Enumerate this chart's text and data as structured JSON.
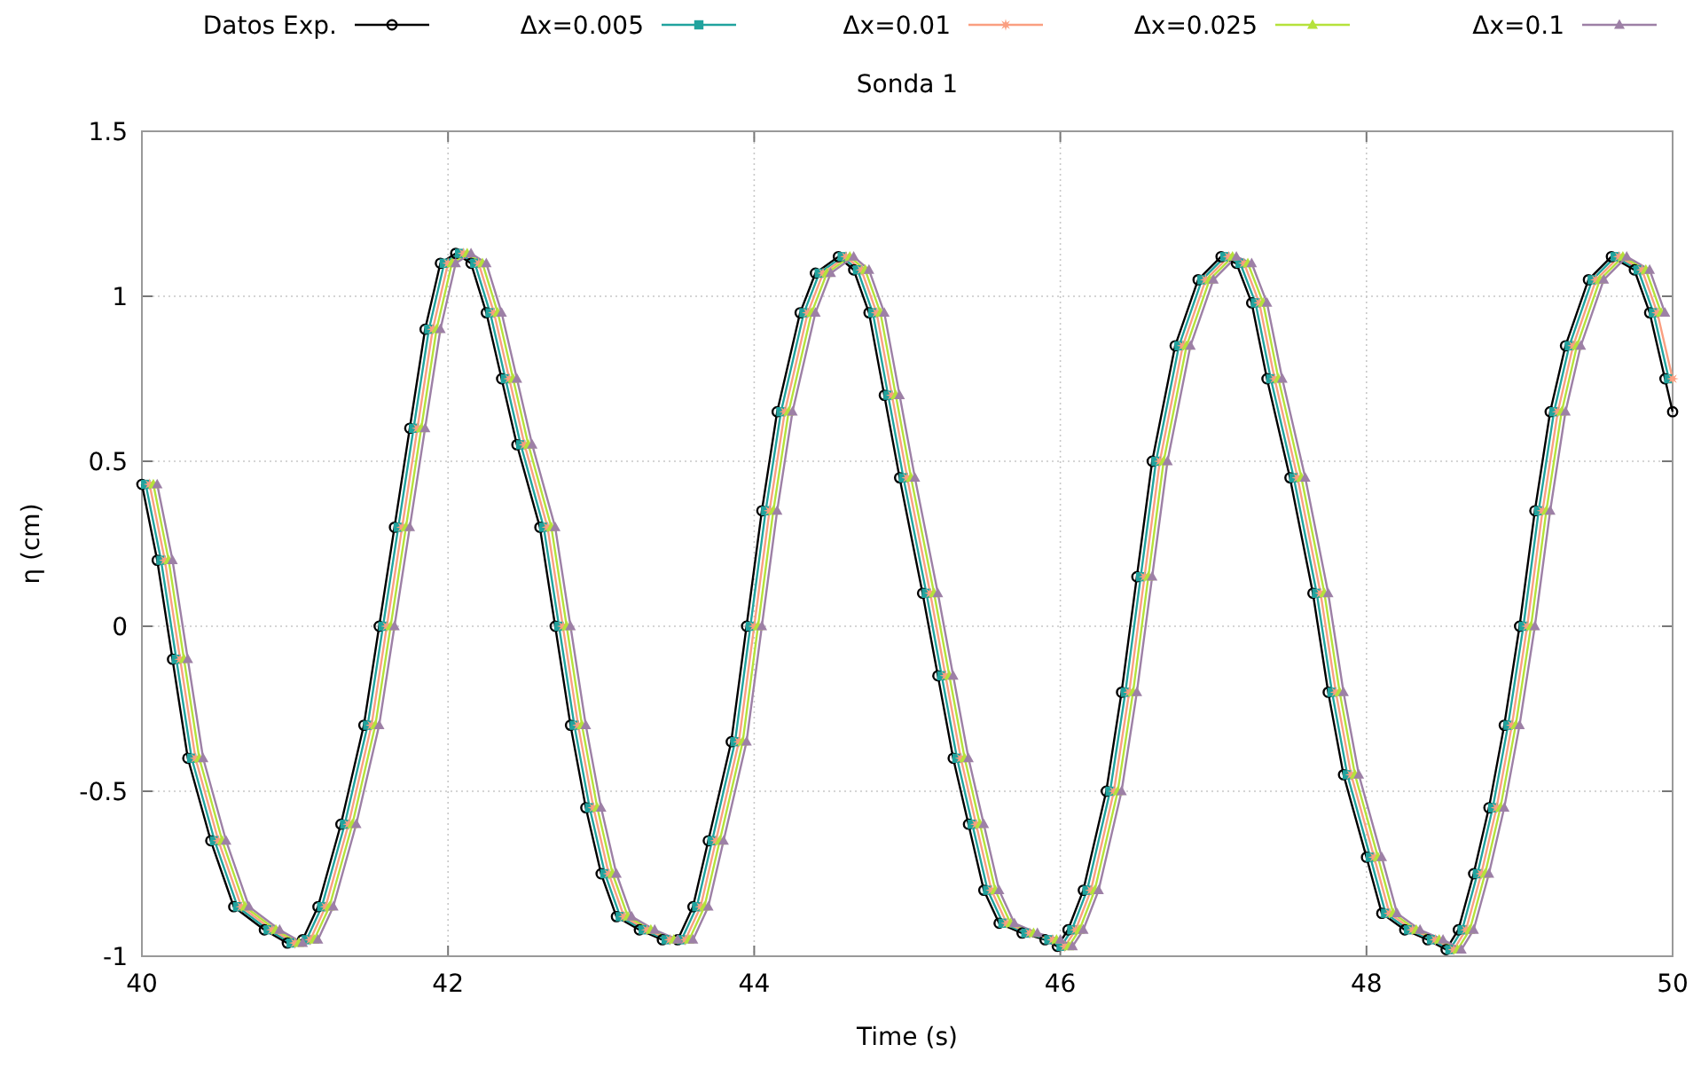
{
  "chart_data": {
    "type": "line",
    "title": "Sonda 1",
    "xlabel": "Time (s)",
    "ylabel": "η (cm)",
    "xlim": [
      40,
      50
    ],
    "ylim": [
      -1,
      1.5
    ],
    "xticks": [
      40,
      42,
      44,
      46,
      48,
      50
    ],
    "yticks": [
      -1,
      -0.5,
      0,
      0.5,
      1,
      1.5
    ],
    "grid": true,
    "legend": "top",
    "x": [
      40,
      40.1,
      40.2,
      40.3,
      40.45,
      40.6,
      40.8,
      40.95,
      41.05,
      41.15,
      41.3,
      41.45,
      41.55,
      41.65,
      41.75,
      41.85,
      41.95,
      42.05,
      42.15,
      42.25,
      42.35,
      42.45,
      42.6,
      42.7,
      42.8,
      42.9,
      43,
      43.1,
      43.25,
      43.4,
      43.5,
      43.6,
      43.7,
      43.85,
      43.95,
      44.05,
      44.15,
      44.3,
      44.4,
      44.55,
      44.65,
      44.75,
      44.85,
      44.95,
      45.1,
      45.2,
      45.3,
      45.4,
      45.5,
      45.6,
      45.75,
      45.9,
      45.98,
      46.05,
      46.15,
      46.3,
      46.4,
      46.5,
      46.6,
      46.75,
      46.9,
      47.05,
      47.15,
      47.25,
      47.35,
      47.5,
      47.65,
      47.75,
      47.85,
      48,
      48.1,
      48.25,
      48.4,
      48.52,
      48.6,
      48.7,
      48.8,
      48.9,
      49,
      49.1,
      49.2,
      49.3,
      49.45,
      49.6,
      49.75,
      49.85,
      49.95,
      50
    ],
    "series": [
      {
        "name": "Datos Exp.",
        "color": "#000000",
        "marker": "circle",
        "values": [
          0.43,
          0.2,
          -0.1,
          -0.4,
          -0.65,
          -0.85,
          -0.92,
          -0.96,
          -0.95,
          -0.85,
          -0.6,
          -0.3,
          0,
          0.3,
          0.6,
          0.9,
          1.1,
          1.13,
          1.1,
          0.95,
          0.75,
          0.55,
          0.3,
          0,
          -0.3,
          -0.55,
          -0.75,
          -0.88,
          -0.92,
          -0.95,
          -0.95,
          -0.85,
          -0.65,
          -0.35,
          0,
          0.35,
          0.65,
          0.95,
          1.07,
          1.12,
          1.08,
          0.95,
          0.7,
          0.45,
          0.1,
          -0.15,
          -0.4,
          -0.6,
          -0.8,
          -0.9,
          -0.93,
          -0.95,
          -0.97,
          -0.92,
          -0.8,
          -0.5,
          -0.2,
          0.15,
          0.5,
          0.85,
          1.05,
          1.12,
          1.1,
          0.98,
          0.75,
          0.45,
          0.1,
          -0.2,
          -0.45,
          -0.7,
          -0.87,
          -0.92,
          -0.95,
          -0.98,
          -0.92,
          -0.75,
          -0.55,
          -0.3,
          0,
          0.35,
          0.65,
          0.85,
          1.05,
          1.12,
          1.08,
          0.95,
          0.75,
          0.65
        ]
      },
      {
        "name": "Δx=0.005",
        "color": "#20a39e",
        "marker": "square",
        "x": [
          40.025,
          40.125,
          40.225,
          40.325,
          40.475,
          40.625,
          40.825,
          40.975,
          41.075,
          41.175,
          41.325,
          41.475,
          41.575,
          41.675,
          41.775,
          41.875,
          41.975,
          42.075,
          42.175,
          42.275,
          42.375,
          42.475,
          42.625,
          42.725,
          42.825,
          42.925,
          43.025,
          43.125,
          43.275,
          43.425,
          43.525,
          43.625,
          43.725,
          43.875,
          43.975,
          44.075,
          44.175,
          44.325,
          44.425,
          44.575,
          44.675,
          44.775,
          44.875,
          44.975,
          45.125,
          45.225,
          45.325,
          45.425,
          45.525,
          45.625,
          45.775,
          45.925,
          46.005,
          46.075,
          46.175,
          46.325,
          46.425,
          46.525,
          46.625,
          46.775,
          46.925,
          47.075,
          47.175,
          47.275,
          47.375,
          47.525,
          47.675,
          47.775,
          47.875,
          48.025,
          48.125,
          48.275,
          48.425,
          48.545,
          48.625,
          48.725,
          48.825,
          48.925,
          49.025,
          49.125,
          49.225,
          49.325,
          49.475,
          49.625,
          49.775,
          49.875,
          49.975
        ],
        "values": [
          0.43,
          0.2,
          -0.1,
          -0.4,
          -0.65,
          -0.85,
          -0.92,
          -0.96,
          -0.95,
          -0.85,
          -0.6,
          -0.3,
          0,
          0.3,
          0.6,
          0.9,
          1.1,
          1.13,
          1.1,
          0.95,
          0.75,
          0.55,
          0.3,
          0,
          -0.3,
          -0.55,
          -0.75,
          -0.88,
          -0.92,
          -0.95,
          -0.95,
          -0.85,
          -0.65,
          -0.35,
          0,
          0.35,
          0.65,
          0.95,
          1.07,
          1.12,
          1.08,
          0.95,
          0.7,
          0.45,
          0.1,
          -0.15,
          -0.4,
          -0.6,
          -0.8,
          -0.9,
          -0.93,
          -0.95,
          -0.97,
          -0.92,
          -0.8,
          -0.5,
          -0.2,
          0.15,
          0.5,
          0.85,
          1.05,
          1.12,
          1.1,
          0.98,
          0.75,
          0.45,
          0.1,
          -0.2,
          -0.45,
          -0.7,
          -0.87,
          -0.92,
          -0.95,
          -0.98,
          -0.92,
          -0.75,
          -0.55,
          -0.3,
          0,
          0.35,
          0.65,
          0.85,
          1.05,
          1.12,
          1.08,
          0.95,
          0.75
        ]
      },
      {
        "name": "Δx=0.01",
        "color": "#fa9f81",
        "marker": "star",
        "x": [
          40.05,
          40.15,
          40.25,
          40.35,
          40.5,
          40.65,
          40.85,
          41,
          41.1,
          41.2,
          41.35,
          41.5,
          41.6,
          41.7,
          41.8,
          41.9,
          42,
          42.1,
          42.2,
          42.3,
          42.4,
          42.5,
          42.65,
          42.75,
          42.85,
          42.95,
          43.05,
          43.15,
          43.3,
          43.45,
          43.55,
          43.65,
          43.75,
          43.9,
          44,
          44.1,
          44.2,
          44.35,
          44.45,
          44.6,
          44.7,
          44.8,
          44.9,
          45,
          45.15,
          45.25,
          45.35,
          45.45,
          45.55,
          45.65,
          45.8,
          45.95,
          46.03,
          46.1,
          46.2,
          46.35,
          46.45,
          46.55,
          46.65,
          46.8,
          46.95,
          47.1,
          47.2,
          47.3,
          47.4,
          47.55,
          47.7,
          47.8,
          47.9,
          48.05,
          48.15,
          48.3,
          48.45,
          48.57,
          48.65,
          48.75,
          48.85,
          48.95,
          49.05,
          49.15,
          49.25,
          49.35,
          49.5,
          49.65,
          49.8,
          49.9,
          50
        ],
        "values": [
          0.43,
          0.2,
          -0.1,
          -0.4,
          -0.65,
          -0.85,
          -0.92,
          -0.96,
          -0.95,
          -0.85,
          -0.6,
          -0.3,
          0,
          0.3,
          0.6,
          0.9,
          1.1,
          1.13,
          1.1,
          0.95,
          0.75,
          0.55,
          0.3,
          0,
          -0.3,
          -0.55,
          -0.75,
          -0.88,
          -0.92,
          -0.95,
          -0.95,
          -0.85,
          -0.65,
          -0.35,
          0,
          0.35,
          0.65,
          0.95,
          1.07,
          1.12,
          1.08,
          0.95,
          0.7,
          0.45,
          0.1,
          -0.15,
          -0.4,
          -0.6,
          -0.8,
          -0.9,
          -0.93,
          -0.95,
          -0.97,
          -0.92,
          -0.8,
          -0.5,
          -0.2,
          0.15,
          0.5,
          0.85,
          1.05,
          1.12,
          1.1,
          0.98,
          0.75,
          0.45,
          0.1,
          -0.2,
          -0.45,
          -0.7,
          -0.87,
          -0.92,
          -0.95,
          -0.98,
          -0.92,
          -0.75,
          -0.55,
          -0.3,
          0,
          0.35,
          0.65,
          0.85,
          1.05,
          1.12,
          1.08,
          0.95,
          0.75
        ]
      },
      {
        "name": "Δx=0.025",
        "color": "#b5e23b",
        "marker": "triangle",
        "x": [
          40.075,
          40.175,
          40.275,
          40.375,
          40.525,
          40.675,
          40.875,
          41.025,
          41.125,
          41.225,
          41.375,
          41.525,
          41.625,
          41.725,
          41.825,
          41.925,
          42.025,
          42.125,
          42.225,
          42.325,
          42.425,
          42.525,
          42.675,
          42.775,
          42.875,
          42.975,
          43.075,
          43.175,
          43.325,
          43.475,
          43.575,
          43.675,
          43.775,
          43.925,
          44.025,
          44.125,
          44.225,
          44.375,
          44.475,
          44.625,
          44.725,
          44.825,
          44.925,
          45.025,
          45.175,
          45.275,
          45.375,
          45.475,
          45.575,
          45.675,
          45.825,
          45.975,
          46.055,
          46.125,
          46.225,
          46.375,
          46.475,
          46.575,
          46.675,
          46.825,
          46.975,
          47.125,
          47.225,
          47.325,
          47.425,
          47.575,
          47.725,
          47.825,
          47.925,
          48.075,
          48.175,
          48.325,
          48.475,
          48.595,
          48.675,
          48.775,
          48.875,
          48.975,
          49.075,
          49.175,
          49.275,
          49.375,
          49.525,
          49.675,
          49.825,
          49.925
        ],
        "values": [
          0.43,
          0.2,
          -0.1,
          -0.4,
          -0.65,
          -0.85,
          -0.92,
          -0.96,
          -0.95,
          -0.85,
          -0.6,
          -0.3,
          0,
          0.3,
          0.6,
          0.9,
          1.1,
          1.13,
          1.1,
          0.95,
          0.75,
          0.55,
          0.3,
          0,
          -0.3,
          -0.55,
          -0.75,
          -0.88,
          -0.92,
          -0.95,
          -0.95,
          -0.85,
          -0.65,
          -0.35,
          0,
          0.35,
          0.65,
          0.95,
          1.07,
          1.12,
          1.08,
          0.95,
          0.7,
          0.45,
          0.1,
          -0.15,
          -0.4,
          -0.6,
          -0.8,
          -0.9,
          -0.93,
          -0.95,
          -0.97,
          -0.92,
          -0.8,
          -0.5,
          -0.2,
          0.15,
          0.5,
          0.85,
          1.05,
          1.12,
          1.1,
          0.98,
          0.75,
          0.45,
          0.1,
          -0.2,
          -0.45,
          -0.7,
          -0.87,
          -0.92,
          -0.95,
          -0.98,
          -0.92,
          -0.75,
          -0.55,
          -0.3,
          0,
          0.35,
          0.65,
          0.85,
          1.05,
          1.12,
          1.08,
          0.95
        ]
      },
      {
        "name": "Δx=0.1",
        "color": "#9d80a6",
        "marker": "triangle",
        "x": [
          40.1,
          40.2,
          40.3,
          40.4,
          40.55,
          40.7,
          40.9,
          41.05,
          41.15,
          41.25,
          41.4,
          41.55,
          41.65,
          41.75,
          41.85,
          41.95,
          42.05,
          42.15,
          42.25,
          42.35,
          42.45,
          42.55,
          42.7,
          42.8,
          42.9,
          43,
          43.1,
          43.2,
          43.35,
          43.5,
          43.6,
          43.7,
          43.8,
          43.95,
          44.05,
          44.15,
          44.25,
          44.4,
          44.5,
          44.65,
          44.75,
          44.85,
          44.95,
          45.05,
          45.2,
          45.3,
          45.4,
          45.5,
          45.6,
          45.7,
          45.85,
          46,
          46.08,
          46.15,
          46.25,
          46.4,
          46.5,
          46.6,
          46.7,
          46.85,
          47,
          47.15,
          47.25,
          47.35,
          47.45,
          47.6,
          47.75,
          47.85,
          47.95,
          48.1,
          48.2,
          48.35,
          48.5,
          48.62,
          48.7,
          48.8,
          48.9,
          49,
          49.1,
          49.2,
          49.3,
          49.4,
          49.55,
          49.7,
          49.85,
          49.95
        ],
        "values": [
          0.43,
          0.2,
          -0.1,
          -0.4,
          -0.65,
          -0.85,
          -0.92,
          -0.96,
          -0.95,
          -0.85,
          -0.6,
          -0.3,
          0,
          0.3,
          0.6,
          0.9,
          1.1,
          1.13,
          1.1,
          0.95,
          0.75,
          0.55,
          0.3,
          0,
          -0.3,
          -0.55,
          -0.75,
          -0.88,
          -0.92,
          -0.95,
          -0.95,
          -0.85,
          -0.65,
          -0.35,
          0,
          0.35,
          0.65,
          0.95,
          1.07,
          1.12,
          1.08,
          0.95,
          0.7,
          0.45,
          0.1,
          -0.15,
          -0.4,
          -0.6,
          -0.8,
          -0.9,
          -0.93,
          -0.95,
          -0.97,
          -0.92,
          -0.8,
          -0.5,
          -0.2,
          0.15,
          0.5,
          0.85,
          1.05,
          1.12,
          1.1,
          0.98,
          0.75,
          0.45,
          0.1,
          -0.2,
          -0.45,
          -0.7,
          -0.87,
          -0.92,
          -0.95,
          -0.98,
          -0.92,
          -0.75,
          -0.55,
          -0.3,
          0,
          0.35,
          0.65,
          0.85,
          1.05,
          1.12,
          1.08,
          0.95
        ]
      }
    ]
  }
}
